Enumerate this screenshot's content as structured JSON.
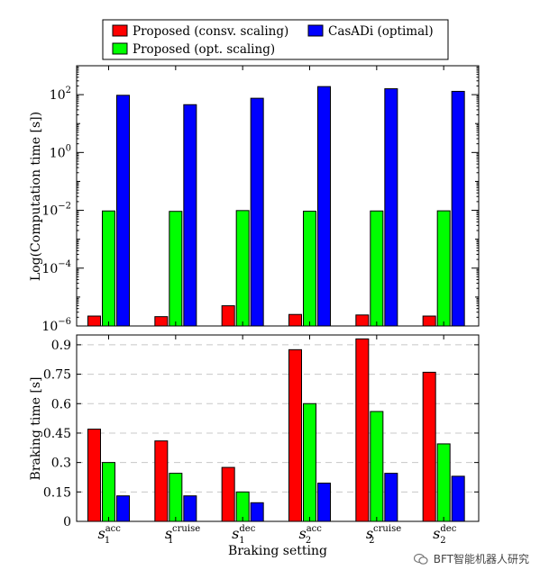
{
  "legend": {
    "entries": [
      {
        "label": "Proposed (consv. scaling)",
        "color": "#ff0000"
      },
      {
        "label": "Proposed (opt. scaling)",
        "color": "#00ff00"
      },
      {
        "label": "CasADi (optimal)",
        "color": "#0000ff"
      }
    ]
  },
  "x_axis": {
    "label": "Braking setting",
    "categories": [
      {
        "base": "s",
        "sub": "1",
        "sup": "acc"
      },
      {
        "base": "s",
        "sub": "1",
        "sup": "cruise"
      },
      {
        "base": "s",
        "sub": "1",
        "sup": "dec"
      },
      {
        "base": "s",
        "sub": "2",
        "sup": "acc"
      },
      {
        "base": "s",
        "sub": "2",
        "sup": "cruise"
      },
      {
        "base": "s",
        "sub": "2",
        "sup": "dec"
      }
    ]
  },
  "watermark": "BFT智能机器人研究",
  "chart_data": [
    {
      "type": "bar",
      "title": "",
      "ylabel": "Log(Computation time [s])",
      "yscale": "log",
      "ylim": [
        1e-06,
        1000
      ],
      "yticks": [
        {
          "value": 1e-06,
          "base": "10",
          "exp": "−6"
        },
        {
          "value": 0.0001,
          "base": "10",
          "exp": "−4"
        },
        {
          "value": 0.01,
          "base": "10",
          "exp": "−2"
        },
        {
          "value": 1,
          "base": "10",
          "exp": "0"
        },
        {
          "value": 100,
          "base": "10",
          "exp": "2"
        }
      ],
      "categories": [
        "s1 acc",
        "s1 cruise",
        "s1 dec",
        "s2 acc",
        "s2 cruise",
        "s2 dec"
      ],
      "series": [
        {
          "name": "Proposed (consv. scaling)",
          "color": "#ff0000",
          "values": [
            2.2e-06,
            2.1e-06,
            5e-06,
            2.5e-06,
            2.4e-06,
            2.2e-06
          ]
        },
        {
          "name": "Proposed (opt. scaling)",
          "color": "#00ff00",
          "values": [
            0.0095,
            0.0092,
            0.0098,
            0.0093,
            0.0095,
            0.0096
          ]
        },
        {
          "name": "CasADi (optimal)",
          "color": "#0000ff",
          "values": [
            95,
            45,
            75,
            190,
            160,
            130
          ]
        }
      ]
    },
    {
      "type": "bar",
      "title": "",
      "xlabel": "Braking setting",
      "ylabel": "Braking time [s]",
      "ylim": [
        0,
        0.95
      ],
      "grid": true,
      "yticks": [
        "0",
        "0.15",
        "0.3",
        "0.45",
        "0.6",
        "0.75",
        "0.9"
      ],
      "categories": [
        "s1 acc",
        "s1 cruise",
        "s1 dec",
        "s2 acc",
        "s2 cruise",
        "s2 dec"
      ],
      "series": [
        {
          "name": "Proposed (consv. scaling)",
          "color": "#ff0000",
          "values": [
            0.47,
            0.41,
            0.275,
            0.875,
            0.93,
            0.76
          ]
        },
        {
          "name": "Proposed (opt. scaling)",
          "color": "#00ff00",
          "values": [
            0.3,
            0.245,
            0.15,
            0.6,
            0.56,
            0.395
          ]
        },
        {
          "name": "CasADi (optimal)",
          "color": "#0000ff",
          "values": [
            0.13,
            0.13,
            0.095,
            0.195,
            0.245,
            0.23
          ]
        }
      ]
    }
  ]
}
